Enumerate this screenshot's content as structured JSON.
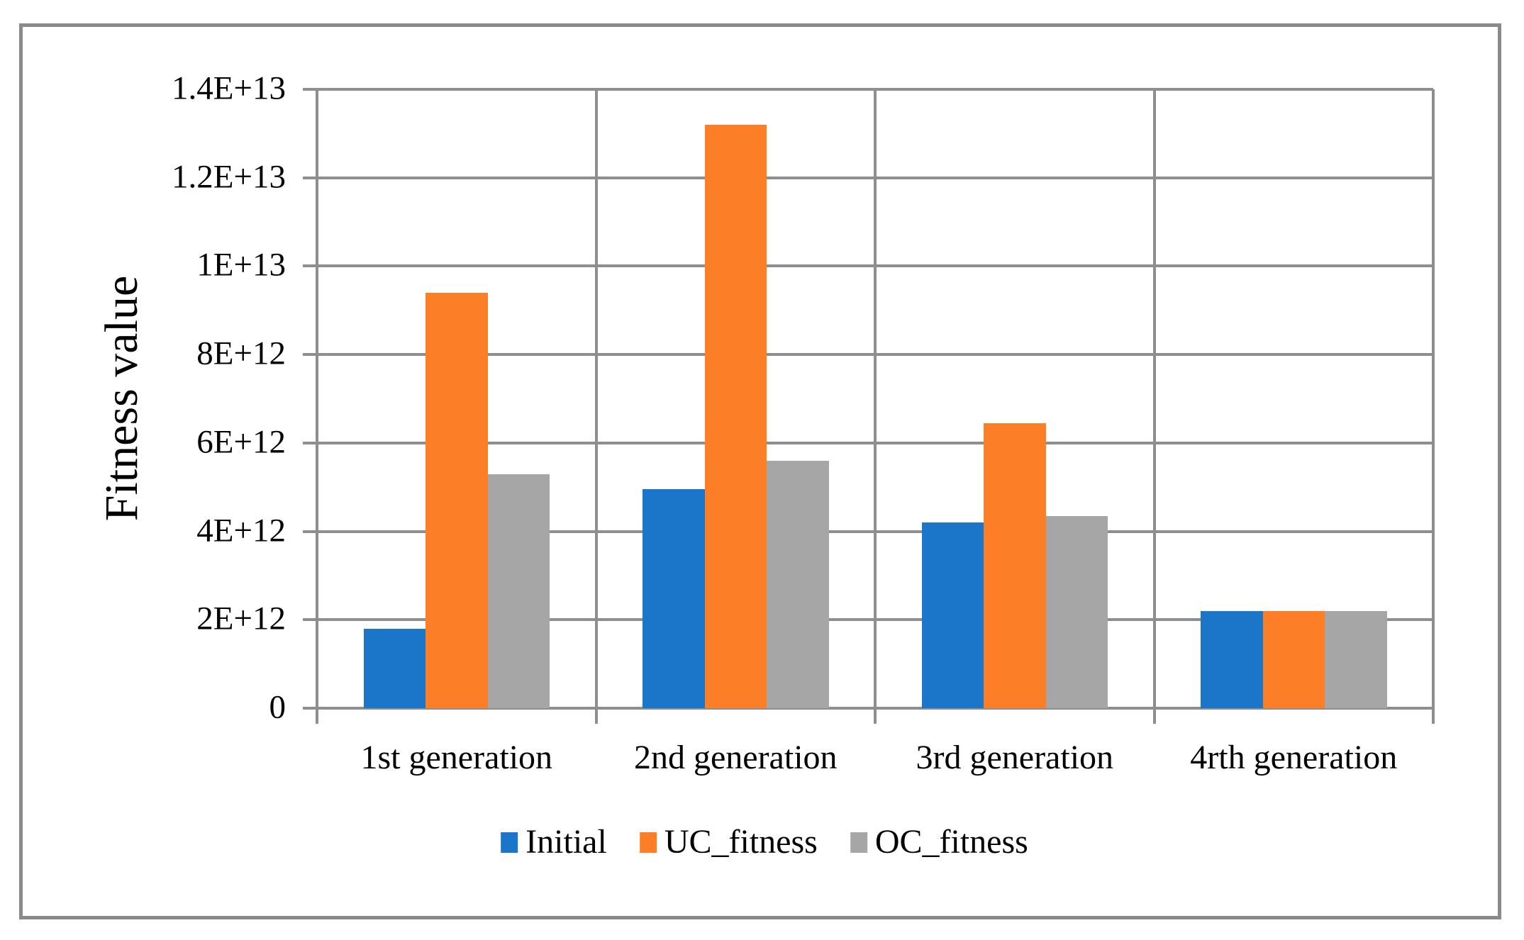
{
  "figure": {
    "background": "#FFFFFF",
    "frame_color": "#8A8A8A",
    "gridline_color": "#8E8E8E",
    "text_color": "#000000"
  },
  "chart_data": {
    "type": "bar",
    "title": "",
    "xlabel": "",
    "ylabel": "Fitness value",
    "categories": [
      "1st generation",
      "2nd generation",
      "3rd generation",
      "4rth generation"
    ],
    "series": [
      {
        "name": "Initial",
        "color": "#1B75C8",
        "values": [
          1800000000000.0,
          4950000000000.0,
          4200000000000.0,
          2200000000000.0
        ]
      },
      {
        "name": "UC_fitness",
        "color": "#FC7E26",
        "values": [
          9400000000000.0,
          13200000000000.0,
          6450000000000.0,
          2200000000000.0
        ]
      },
      {
        "name": "OC_fitness",
        "color": "#A6A6A6",
        "values": [
          5300000000000.0,
          5600000000000.0,
          4350000000000.0,
          2200000000000.0
        ]
      }
    ],
    "ylim": [
      0,
      14000000000000.0
    ],
    "ytick_step": 2000000000000.0,
    "ytick_labels": [
      "0",
      "2E+12",
      "4E+12",
      "6E+12",
      "8E+12",
      "1E+13",
      "1.2E+13",
      "1.4E+13"
    ],
    "grid": true,
    "legend_position": "bottom"
  }
}
